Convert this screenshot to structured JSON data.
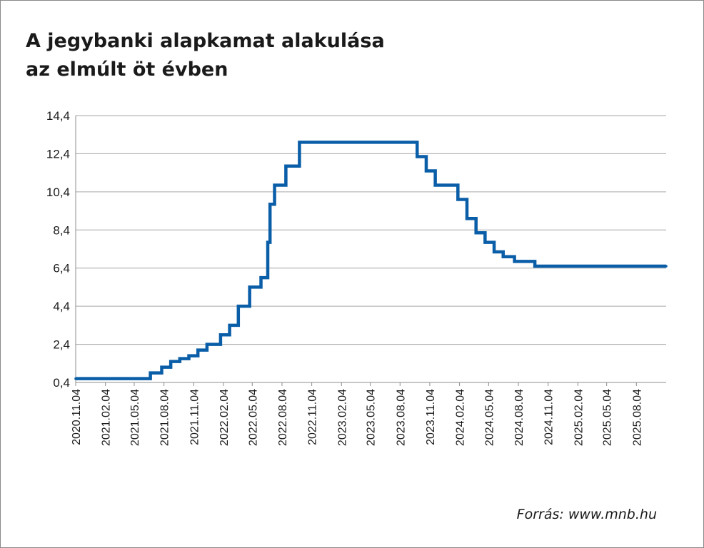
{
  "title_lines": [
    "A jegybanki alapkamat alakulása",
    "az elmúlt öt évben"
  ],
  "source": "Forrás: www.mnb.hu",
  "chart_data": {
    "type": "line",
    "title": "A jegybanki alapkamat alakulása az elmúlt öt évben",
    "xlabel": "",
    "ylabel": "",
    "y_ticks": [
      "0,4",
      "2,4",
      "4,4",
      "6,4",
      "8,4",
      "10,4",
      "12,4",
      "14,4"
    ],
    "ylim": [
      0.4,
      14.4
    ],
    "x_ticks": [
      "2020.11.04",
      "2021.02.04",
      "2021.05.04",
      "2021.08.04",
      "2021.11.04",
      "2022.02.04",
      "2022.05.04",
      "2022.08.04",
      "2022.11.04",
      "2023.02.04",
      "2023.05.04",
      "2023.08.04",
      "2023.11.04",
      "2024.02.04",
      "2024.05.04",
      "2024.08.04",
      "2024.11.04",
      "2025.02.04",
      "2025.05.04",
      "2025.08.04"
    ],
    "xlim": [
      "2020-11-04",
      "2025-11-04"
    ],
    "grid": "horizontal",
    "color": "#0a5ea8",
    "series": [
      {
        "step": true,
        "points": [
          [
            "2020-11-04",
            0.6
          ],
          [
            "2021-06-23",
            0.9
          ],
          [
            "2021-07-28",
            1.2
          ],
          [
            "2021-08-25",
            1.5
          ],
          [
            "2021-09-22",
            1.65
          ],
          [
            "2021-10-20",
            1.8
          ],
          [
            "2021-11-17",
            2.1
          ],
          [
            "2021-12-15",
            2.4
          ],
          [
            "2022-01-26",
            2.9
          ],
          [
            "2022-02-23",
            3.4
          ],
          [
            "2022-03-22",
            4.4
          ],
          [
            "2022-04-26",
            5.4
          ],
          [
            "2022-05-31",
            5.9
          ],
          [
            "2022-06-21",
            7.75
          ],
          [
            "2022-06-28",
            9.75
          ],
          [
            "2022-07-12",
            10.75
          ],
          [
            "2022-08-16",
            11.75
          ],
          [
            "2022-09-27",
            13.0
          ],
          [
            "2023-09-26",
            12.25
          ],
          [
            "2023-10-24",
            11.5
          ],
          [
            "2023-11-21",
            10.75
          ],
          [
            "2024-01-30",
            10.0
          ],
          [
            "2024-02-27",
            9.0
          ],
          [
            "2024-03-26",
            8.25
          ],
          [
            "2024-04-23",
            7.75
          ],
          [
            "2024-05-21",
            7.25
          ],
          [
            "2024-06-18",
            7.0
          ],
          [
            "2024-07-23",
            6.75
          ],
          [
            "2024-09-24",
            6.5
          ],
          [
            "2025-11-04",
            6.5
          ]
        ]
      }
    ]
  }
}
